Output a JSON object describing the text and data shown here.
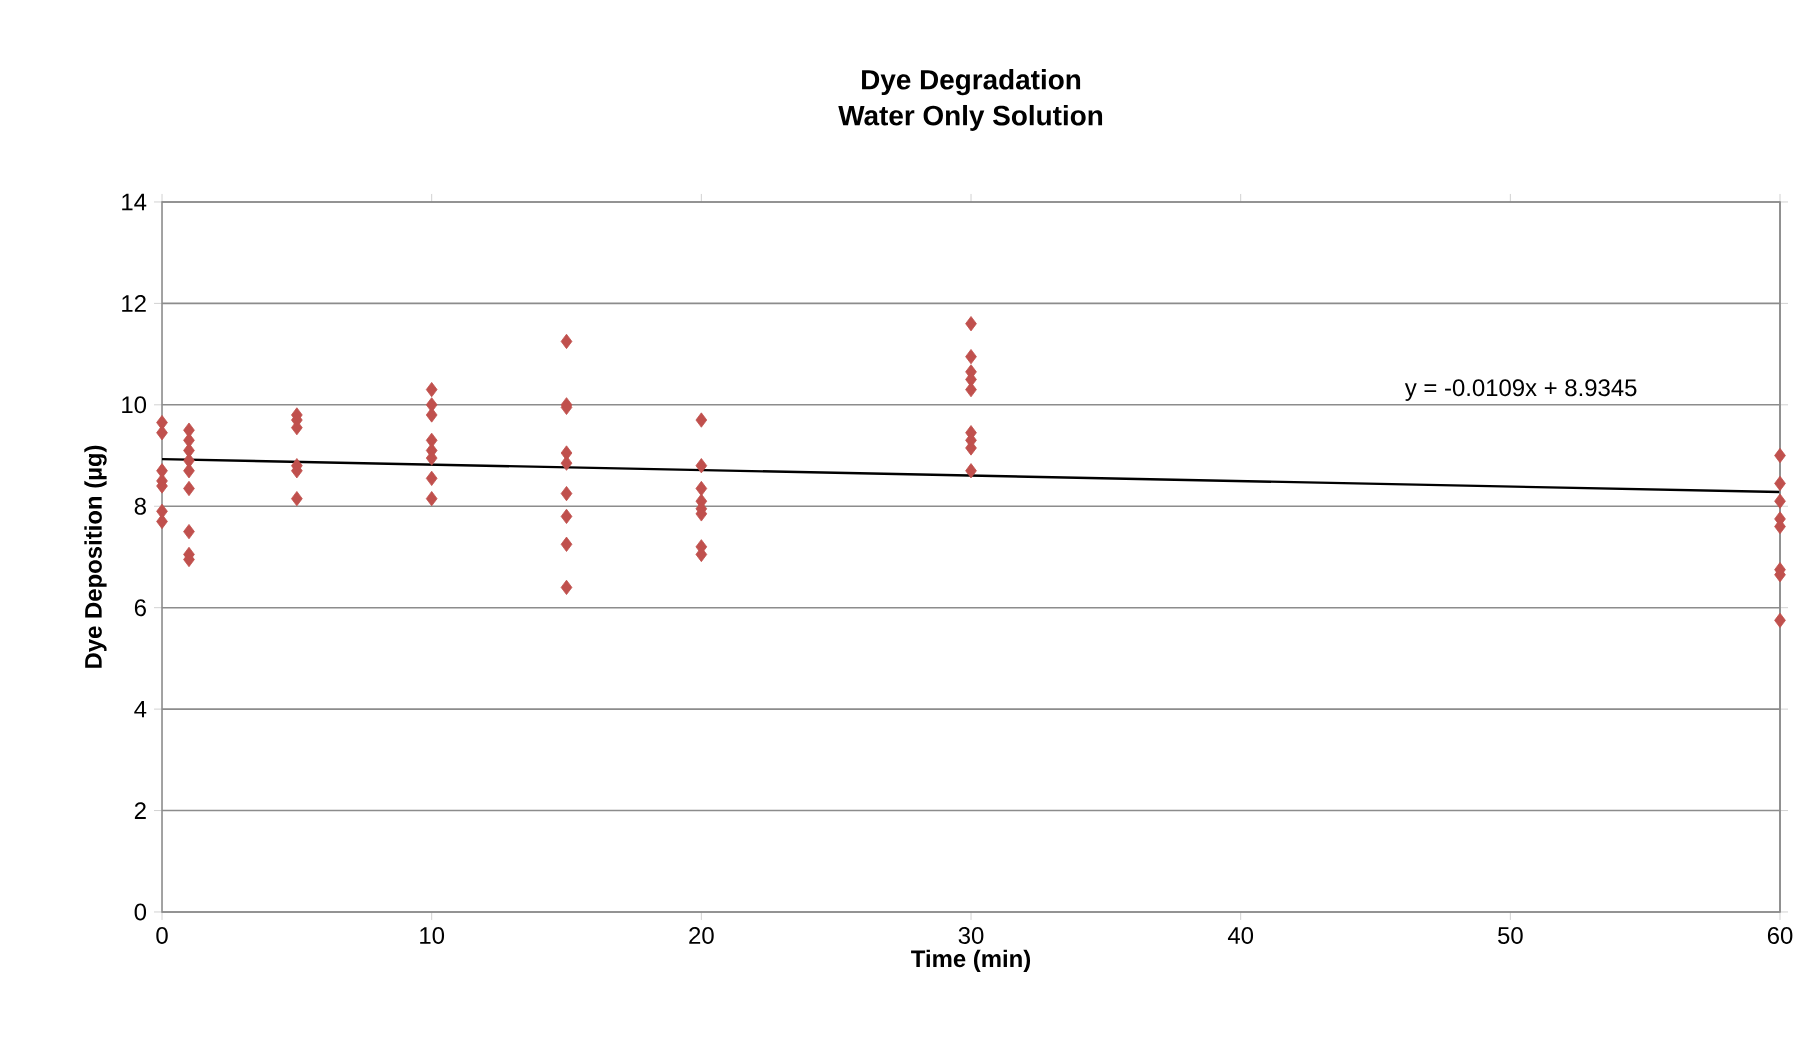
{
  "chart_data": {
    "type": "scatter",
    "title": "Dye Degradation",
    "subtitle": "Water Only Solution",
    "xlabel": "Time (min)",
    "ylabel": "Dye Deposition (µg)",
    "xlim": [
      0,
      60
    ],
    "xticks": [
      0,
      10,
      20,
      30,
      40,
      50,
      60
    ],
    "ylim": [
      0,
      14
    ],
    "yticks": [
      0,
      2,
      4,
      6,
      8,
      10,
      12,
      14
    ],
    "grid": "y",
    "series": [
      {
        "color": "#c0504d",
        "marker": "diamond",
        "x": [
          0,
          0,
          0,
          0,
          0,
          0,
          0,
          1,
          1,
          1,
          1,
          1,
          1,
          1,
          1,
          1,
          5,
          5,
          5,
          5,
          5,
          5,
          10,
          10,
          10,
          10,
          10,
          10,
          10,
          10,
          15,
          15,
          15,
          15,
          15,
          15,
          15,
          15,
          15,
          20,
          20,
          20,
          20,
          20,
          20,
          20,
          20,
          30,
          30,
          30,
          30,
          30,
          30,
          30,
          30,
          30,
          60,
          60,
          60,
          60,
          60,
          60,
          60,
          60
        ],
        "values": [
          9.65,
          9.45,
          8.7,
          8.5,
          8.4,
          7.9,
          7.7,
          9.5,
          9.3,
          9.1,
          8.9,
          8.7,
          8.35,
          7.5,
          7.05,
          6.95,
          9.8,
          9.7,
          9.55,
          8.8,
          8.7,
          8.15,
          10.3,
          10.0,
          9.8,
          9.3,
          9.1,
          8.95,
          8.55,
          8.15,
          11.25,
          10.0,
          9.95,
          9.05,
          8.85,
          8.25,
          7.8,
          7.25,
          6.4,
          9.7,
          8.8,
          8.35,
          8.1,
          7.95,
          7.85,
          7.2,
          7.05,
          11.6,
          10.95,
          10.65,
          10.5,
          10.3,
          9.45,
          9.3,
          9.15,
          8.7,
          9.0,
          8.45,
          8.1,
          7.75,
          7.6,
          6.75,
          6.65,
          5.75
        ]
      },
      {
        "type": "line",
        "color": "#000000",
        "marker": "none",
        "line_style": "solid",
        "x": [
          0,
          60
        ],
        "values": [
          8.93,
          8.28
        ]
      }
    ],
    "annotations": [
      "y = -0.0109x + 8.9345"
    ]
  }
}
